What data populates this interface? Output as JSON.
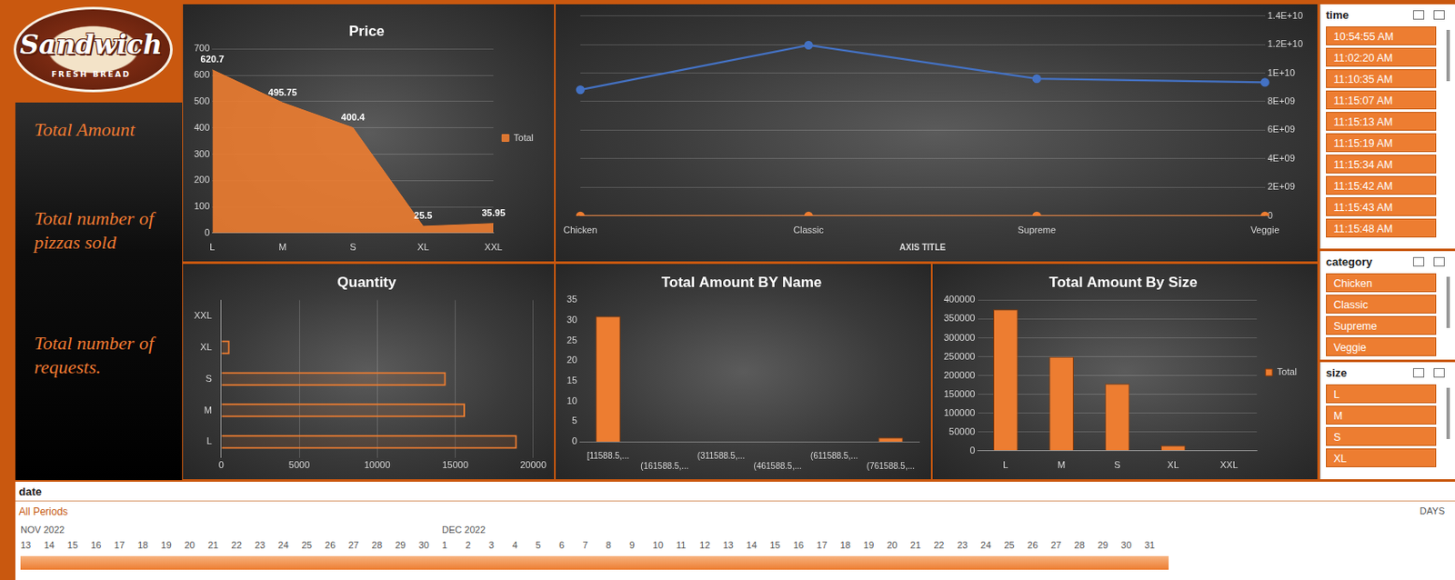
{
  "logo": {
    "title": "Sandwich",
    "subtitle": "FRESH BREAD"
  },
  "sidebar": [
    "Total Amount",
    "Total number of pizzas sold",
    "Total number of requests."
  ],
  "chart_data": [
    {
      "type": "area",
      "title": "Price",
      "categories": [
        "L",
        "M",
        "S",
        "XL",
        "XXL"
      ],
      "series": [
        {
          "name": "Total",
          "color": "#ed7d31",
          "values": [
            620.7,
            495.75,
            400.4,
            25.5,
            35.95
          ]
        }
      ],
      "ylim": [
        0,
        700
      ],
      "yticks": [
        0,
        100,
        200,
        300,
        400,
        500,
        600,
        700
      ],
      "grid": true,
      "legend": "right",
      "data_labels": true
    },
    {
      "type": "line",
      "x_label": "AXIS TITLE",
      "categories": [
        "Chicken",
        "Classic",
        "Supreme",
        "Veggie"
      ],
      "series": [
        {
          "color": "#4472c4",
          "marker": "circle",
          "axis": "y2",
          "values": [
            8830000000,
            11950000000,
            9600000000,
            9350000000
          ]
        },
        {
          "color": "#ed7d31",
          "marker": "circle",
          "axis": "y2",
          "values": [
            0,
            0,
            0,
            0
          ]
        }
      ],
      "y2lim": [
        0,
        14000000000
      ],
      "y2ticks": [
        0,
        {
          "value": 2000000000,
          "label": "2E+09"
        },
        {
          "value": 4000000000,
          "label": "4E+09"
        },
        {
          "value": 6000000000,
          "label": "6E+09"
        },
        {
          "value": 8000000000,
          "label": "8E+09"
        },
        {
          "value": 10000000000,
          "label": "1E+10"
        },
        {
          "value": 12000000000,
          "label": "1.2E+10"
        },
        {
          "value": 14000000000,
          "label": "1.4E+10"
        }
      ],
      "grid": true
    },
    {
      "type": "bar",
      "orientation": "horizontal",
      "title": "Quantity",
      "categories": [
        "L",
        "M",
        "S",
        "XL",
        "XXL"
      ],
      "values": [
        18956,
        15635,
        14403,
        544,
        28
      ],
      "color": "#ed7d31",
      "xlim": [
        0,
        20000
      ],
      "xticks": [
        0,
        5000,
        10000,
        15000,
        20000
      ],
      "grid": true
    },
    {
      "type": "bar",
      "title": "Total Amount BY Name",
      "categories": [
        "[11588.5,...",
        "(161588.5,...",
        "(311588.5,...",
        "(461588.5,...",
        "(611588.5,...",
        "(761588.5,..."
      ],
      "values": [
        31,
        0,
        0,
        0,
        0,
        1
      ],
      "color": "#ed7d31",
      "ylim": [
        0,
        35
      ],
      "yticks": [
        0,
        5,
        10,
        15,
        20,
        25,
        30,
        35
      ],
      "grid": false
    },
    {
      "type": "bar",
      "title": "Total Amount By Size",
      "categories": [
        "L",
        "M",
        "S",
        "XL",
        "XXL"
      ],
      "series": [
        {
          "name": "Total",
          "color": "#ed7d31",
          "values": [
            375319,
            249382,
            178077,
            14076,
            1007
          ]
        }
      ],
      "ylim": [
        0,
        400000
      ],
      "yticks": [
        0,
        50000,
        100000,
        150000,
        200000,
        250000,
        300000,
        350000,
        400000
      ],
      "grid": true,
      "legend": "right"
    }
  ],
  "slicers": [
    {
      "title": "time",
      "items": [
        "10:54:55 AM",
        "11:02:20 AM",
        "11:10:35 AM",
        "11:15:07 AM",
        "11:15:13 AM",
        "11:15:19 AM",
        "11:15:34 AM",
        "11:15:42 AM",
        "11:15:43 AM",
        "11:15:48 AM"
      ]
    },
    {
      "title": "category",
      "items": [
        "Chicken",
        "Classic",
        "Supreme",
        "Veggie"
      ]
    },
    {
      "title": "size",
      "items": [
        "L",
        "M",
        "S",
        "XL"
      ]
    }
  ],
  "timeline": {
    "title": "date",
    "period": "All Periods",
    "level": "DAYS",
    "months": [
      {
        "label": "NOV 2022",
        "days": [
          13,
          14,
          15,
          16,
          17,
          18,
          19,
          20,
          21,
          22,
          23,
          24,
          25,
          26,
          27,
          28,
          29,
          30
        ]
      },
      {
        "label": "DEC 2022",
        "days": [
          1,
          2,
          3,
          4,
          5,
          6,
          7,
          8,
          9,
          10,
          11,
          12,
          13,
          14,
          15,
          16,
          17,
          18,
          19,
          20,
          21,
          22,
          23,
          24,
          25,
          26,
          27,
          28,
          29,
          30,
          31
        ]
      }
    ]
  }
}
